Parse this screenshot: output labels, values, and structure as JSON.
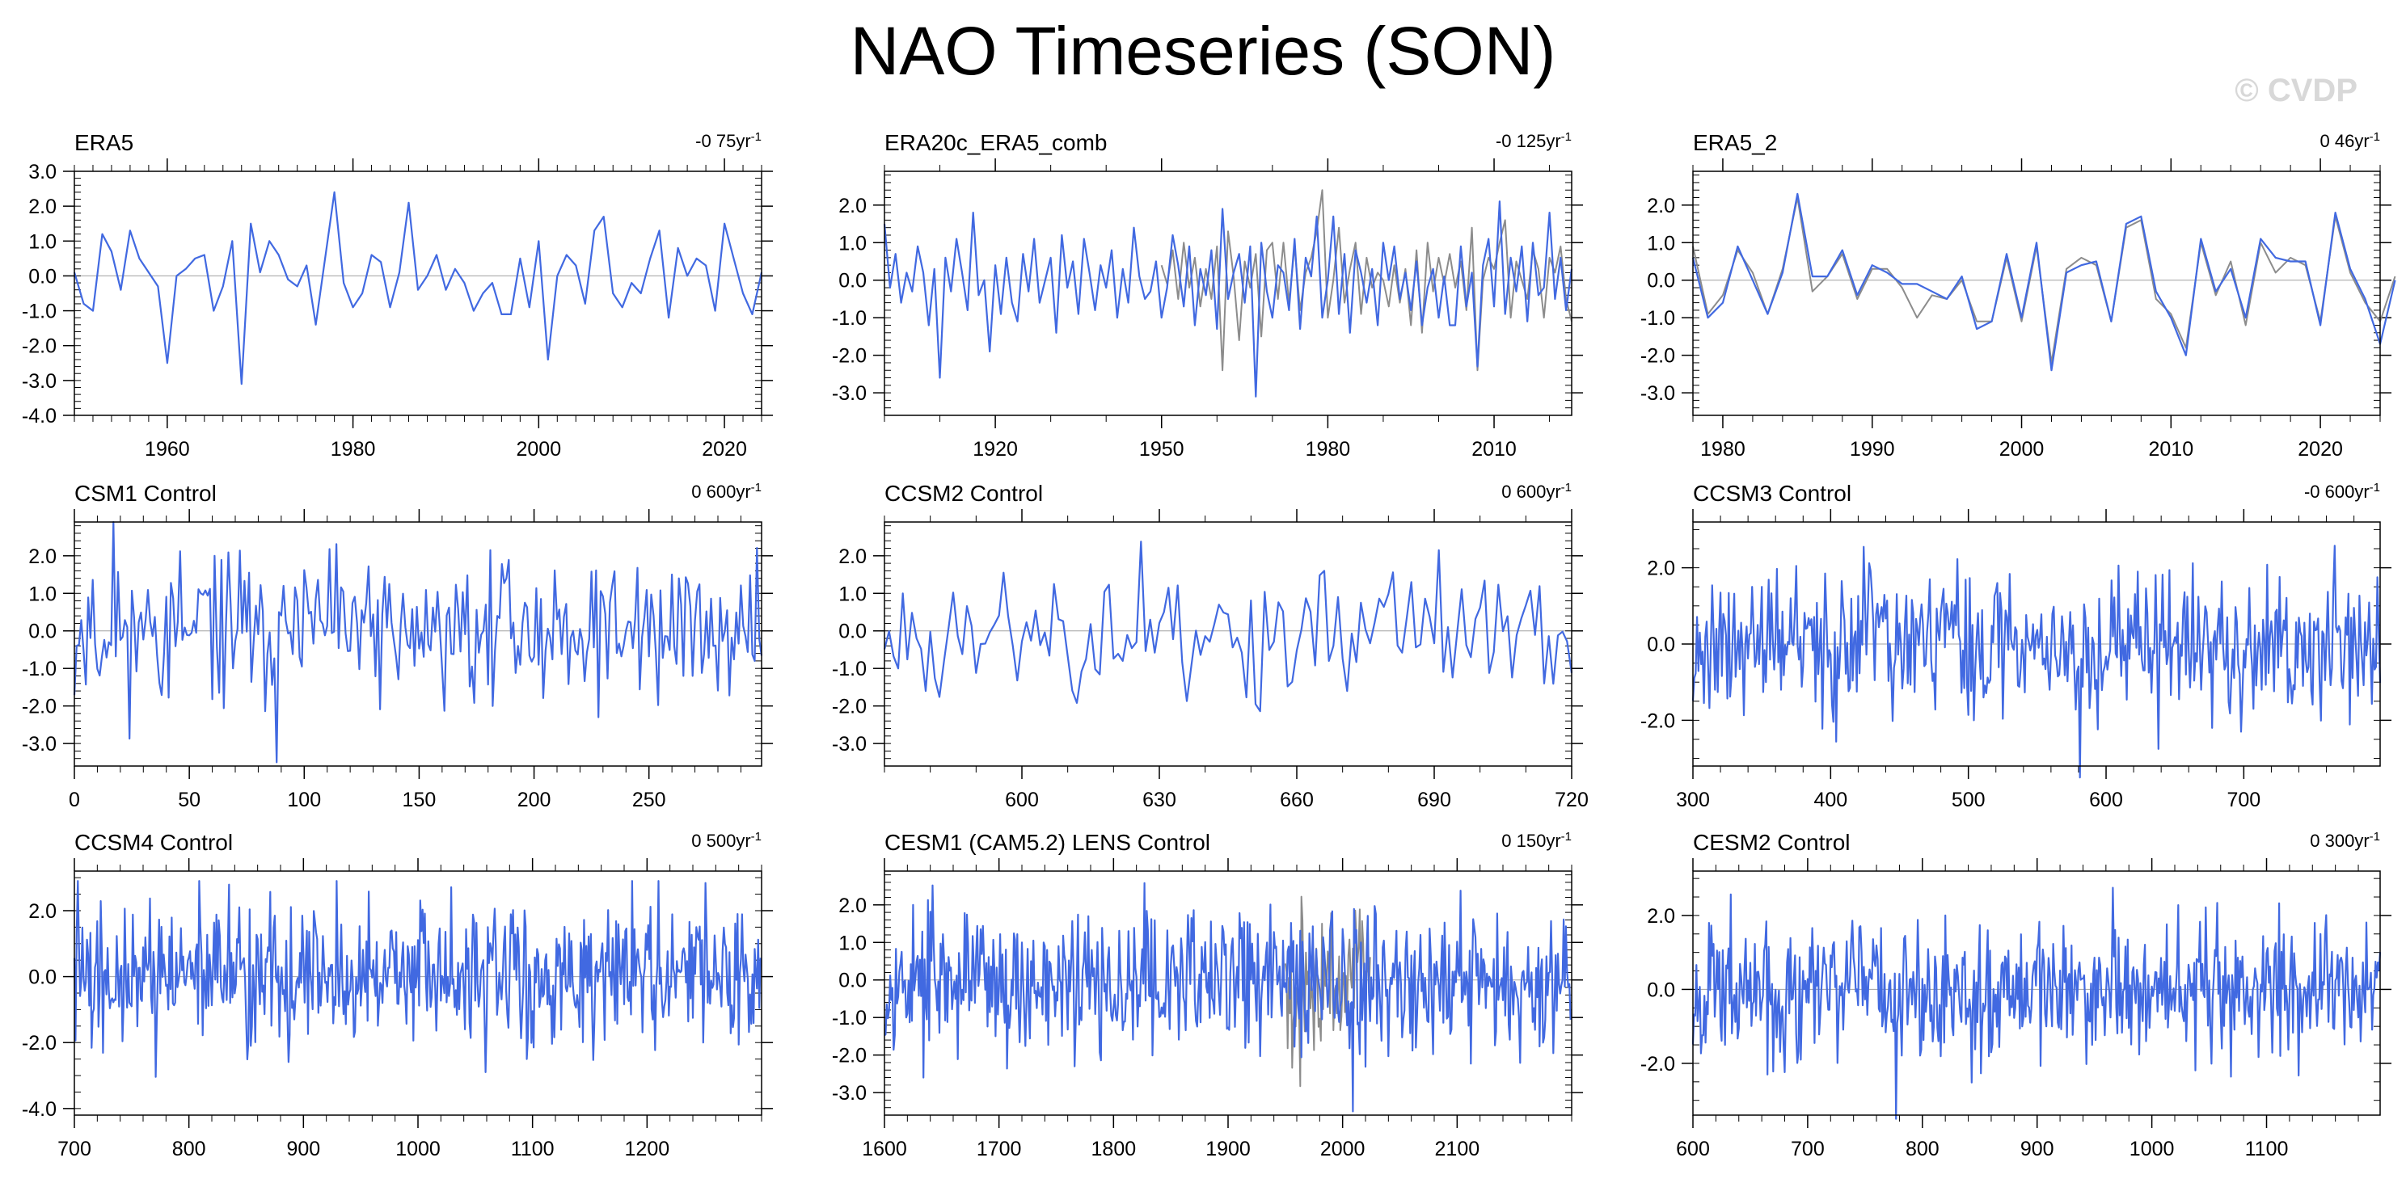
{
  "title": "NAO Timeseries (SON)",
  "watermark": "© CVDP",
  "colors": {
    "model": "#4169e1",
    "reference": "#8c8c8c",
    "zero_line": "#a0a0a0"
  },
  "chart_data": [
    {
      "type": "line",
      "title": "ERA5",
      "trend": "-0 75yr",
      "trend_unit": "-1",
      "xlim": [
        1950,
        2024
      ],
      "ylim": [
        -4,
        3
      ],
      "xticks": [
        1960,
        1980,
        2000,
        2020
      ],
      "yticks": [
        -4,
        -3,
        -2,
        -1,
        0,
        1,
        2,
        3
      ],
      "ytick_labels": [
        "-4.0",
        "-3.0",
        "-2.0",
        "-1.0",
        "0.0",
        "1.0",
        "2.0",
        "3.0"
      ],
      "series": [
        {
          "x_start": 1950,
          "values": [
            0.1,
            -0.8,
            -1.0,
            1.2,
            0.7,
            -0.4,
            1.3,
            0.5,
            0.1,
            -0.3,
            -2.5,
            0.0,
            0.2,
            0.5,
            0.6,
            -1.0,
            -0.3,
            1.0,
            -3.1,
            1.5,
            0.1,
            1.0,
            0.6,
            -0.1,
            -0.3,
            0.3,
            -1.4,
            0.5,
            2.4,
            -0.2,
            -0.9,
            -0.5,
            0.6,
            0.4,
            -0.9,
            0.1,
            2.1,
            -0.4,
            0.0,
            0.6,
            -0.4,
            0.2,
            -0.2,
            -1.0,
            -0.5,
            -0.2,
            -1.1,
            -1.1,
            0.5,
            -0.9,
            1.0,
            -2.4,
            0.0,
            0.6,
            0.3,
            -0.8,
            1.3,
            1.7,
            -0.5,
            -0.9,
            -0.2,
            -0.5,
            0.5,
            1.3,
            -1.2,
            0.8,
            0.0,
            0.5,
            0.3,
            -1.0,
            1.5,
            0.5,
            -0.5,
            -1.1,
            0.1
          ]
        }
      ]
    },
    {
      "type": "line",
      "title": "ERA20c_ERA5_comb",
      "trend": "-0 125yr",
      "trend_unit": "-1",
      "xlim": [
        1900,
        2024
      ],
      "ylim": [
        -3.6,
        2.9
      ],
      "xticks": [
        1920,
        1950,
        1980,
        2010
      ],
      "yticks": [
        -3,
        -2,
        -1,
        0,
        1,
        2
      ],
      "ytick_labels": [
        "-3.0",
        "-2.0",
        "-1.0",
        "0.0",
        "1.0",
        "2.0"
      ],
      "series": [
        {
          "x_start": 1900,
          "values": [
            1.5,
            -0.2,
            0.7,
            -0.6,
            0.2,
            -0.3,
            0.9,
            0.2,
            -1.2,
            0.3,
            -2.6,
            0.6,
            -0.3,
            1.1,
            0.2,
            -0.8,
            1.8,
            -0.4,
            0.0,
            -1.9,
            0.4,
            -0.9,
            0.6,
            -0.6,
            -1.1,
            0.7,
            -0.3,
            1.1,
            -0.6,
            0.0,
            0.6,
            -1.4,
            1.2,
            -0.2,
            0.5,
            -0.9,
            1.1,
            0.2,
            -0.8,
            0.4,
            -0.2,
            0.8,
            -1.0,
            0.3,
            -0.6,
            1.4,
            0.1,
            -0.5,
            -0.3,
            0.5,
            -1.0,
            -0.2,
            1.2,
            0.4,
            -0.7,
            0.9,
            -1.2,
            0.3,
            -0.4,
            0.8,
            -1.3,
            1.9,
            -0.5,
            0.2,
            0.7,
            -0.6,
            0.9,
            -3.1,
            1.0,
            -0.3,
            -1.0,
            0.4,
            0.2,
            -0.8,
            1.1,
            -1.3,
            0.6,
            0.1,
            1.7,
            -1.0,
            0.0,
            1.7,
            -0.9,
            0.7,
            -1.4,
            0.8,
            0.2,
            -0.6,
            0.3,
            -1.2,
            1.0,
            0.0,
            0.9,
            -0.5,
            0.2,
            -0.8,
            0.5,
            -1.2,
            -0.2,
            0.3,
            -1.0,
            0.1,
            -1.2,
            -1.2,
            0.9,
            -0.7,
            0.2,
            -2.3,
            0.4,
            1.1,
            -0.7,
            2.1,
            -0.9,
            0.6,
            -0.3,
            0.9,
            -1.1,
            1.0,
            -0.4,
            -0.2,
            1.8,
            -0.5,
            0.6,
            -0.8,
            0.3
          ]
        },
        {
          "name": "reference",
          "x_start": 1950,
          "values": [
            0.4,
            -0.1,
            0.8,
            -0.5,
            1.0,
            -0.2,
            0.6,
            -0.7,
            0.3,
            -0.5,
            0.9,
            -2.4,
            1.3,
            0.1,
            -1.6,
            0.5,
            -0.2,
            0.7,
            -1.5,
            0.8,
            1.0,
            -0.5,
            1.0,
            -0.6,
            0.9,
            -0.8,
            0.2,
            0.6,
            1.3,
            2.4,
            -1.0,
            0.0,
            1.4,
            -0.6,
            0.3,
            1.0,
            -0.9,
            0.6,
            -0.2,
            0.2,
            0.0,
            -0.7,
            0.4,
            -0.6,
            0.3,
            -1.2,
            0.8,
            -1.4,
            1.0,
            -0.3,
            0.6,
            -0.1,
            0.7,
            -0.2,
            0.5,
            -0.8,
            1.4,
            -2.4,
            0.0,
            0.6,
            0.3,
            1.0,
            1.6,
            -1.0,
            0.5,
            0.0,
            -0.5,
            0.8,
            0.3,
            -1.0,
            0.6,
            0.2,
            0.9,
            -0.5,
            -1.1
          ]
        }
      ]
    },
    {
      "type": "line",
      "title": "ERA5_2",
      "trend": "0 46yr",
      "trend_unit": "-1",
      "xlim": [
        1978,
        2024
      ],
      "ylim": [
        -3.6,
        2.9
      ],
      "xticks": [
        1980,
        1990,
        2000,
        2010,
        2020
      ],
      "yticks": [
        -3,
        -2,
        -1,
        0,
        1,
        2
      ],
      "ytick_labels": [
        "-3.0",
        "-2.0",
        "-1.0",
        "0.0",
        "1.0",
        "2.0"
      ],
      "series": [
        {
          "x_start": 1978,
          "values": [
            0.6,
            -1.0,
            -0.6,
            0.9,
            0.0,
            -0.9,
            0.2,
            2.3,
            0.1,
            0.1,
            0.8,
            -0.4,
            0.4,
            0.2,
            -0.1,
            -0.1,
            -0.3,
            -0.5,
            0.1,
            -1.3,
            -1.1,
            0.7,
            -1.0,
            1.0,
            -2.4,
            0.2,
            0.4,
            0.5,
            -1.1,
            1.5,
            1.7,
            -0.3,
            -1.0,
            -2.0,
            1.1,
            -0.3,
            0.3,
            -1.0,
            1.1,
            0.6,
            0.5,
            0.5,
            -1.2,
            1.8,
            0.3,
            -0.5,
            -1.7,
            0.0
          ]
        },
        {
          "name": "reference",
          "x_start": 1978,
          "values": [
            0.9,
            -0.9,
            -0.4,
            0.8,
            0.2,
            -0.9,
            0.3,
            2.2,
            -0.3,
            0.1,
            0.7,
            -0.5,
            0.3,
            0.3,
            -0.2,
            -1.0,
            -0.4,
            -0.5,
            0.0,
            -1.1,
            -1.1,
            0.6,
            -1.1,
            0.9,
            -2.2,
            0.3,
            0.6,
            0.4,
            -1.1,
            1.4,
            1.6,
            -0.5,
            -0.9,
            -1.8,
            1.0,
            -0.4,
            0.5,
            -1.2,
            1.0,
            0.2,
            0.6,
            0.4,
            -1.1,
            1.7,
            0.2,
            -0.6,
            -1.1,
            0.1
          ]
        }
      ]
    },
    {
      "type": "line",
      "title": "CSM1 Control",
      "trend": "0 600yr",
      "trend_unit": "-1",
      "xlim": [
        0,
        299
      ],
      "ylim": [
        -3.6,
        2.9
      ],
      "xticks": [
        0,
        50,
        100,
        150,
        200,
        250
      ],
      "yticks": [
        -3,
        -2,
        -1,
        0,
        1,
        2
      ],
      "ytick_labels": [
        "-3.0",
        "-2.0",
        "-1.0",
        "0.0",
        "1.0",
        "2.0"
      ],
      "synthetic": {
        "seed": 11,
        "n": 300,
        "amp": 0.95
      },
      "series": []
    },
    {
      "type": "line",
      "title": "CCSM2 Control",
      "trend": "0 600yr",
      "trend_unit": "-1",
      "xlim": [
        570,
        720
      ],
      "ylim": [
        -3.6,
        2.9
      ],
      "xticks": [
        600,
        630,
        660,
        690,
        720
      ],
      "yticks": [
        -3,
        -2,
        -1,
        0,
        1,
        2
      ],
      "ytick_labels": [
        "-3.0",
        "-2.0",
        "-1.0",
        "0.0",
        "1.0",
        "2.0"
      ],
      "synthetic": {
        "seed": 23,
        "n": 151,
        "amp": 0.95
      },
      "series": []
    },
    {
      "type": "line",
      "title": "CCSM3 Control",
      "trend": "-0 600yr",
      "trend_unit": "-1",
      "xlim": [
        300,
        799
      ],
      "ylim": [
        -3.2,
        3.2
      ],
      "xticks": [
        300,
        400,
        500,
        600,
        700
      ],
      "yticks": [
        -2,
        0,
        2
      ],
      "ytick_labels": [
        "-2.0",
        "0.0",
        "2.0"
      ],
      "synthetic": {
        "seed": 37,
        "n": 500,
        "amp": 0.95
      },
      "series": []
    },
    {
      "type": "line",
      "title": "CCSM4 Control",
      "trend": "0 500yr",
      "trend_unit": "-1",
      "xlim": [
        700,
        1300
      ],
      "ylim": [
        -4.2,
        3.2
      ],
      "xticks": [
        700,
        800,
        900,
        1000,
        1100,
        1200
      ],
      "yticks": [
        -4,
        -2,
        0,
        2
      ],
      "ytick_labels": [
        "-4.0",
        "-2.0",
        "0.0",
        "2.0"
      ],
      "synthetic": {
        "seed": 41,
        "n": 600,
        "amp": 1.0
      },
      "series": []
    },
    {
      "type": "line",
      "title": "CESM1 (CAM5.2) LENS Control",
      "trend": "0 150yr",
      "trend_unit": "-1",
      "xlim": [
        1600,
        2200
      ],
      "ylim": [
        -3.6,
        2.9
      ],
      "xticks": [
        1600,
        1700,
        1800,
        1900,
        2000,
        2100
      ],
      "yticks": [
        -3,
        -2,
        -1,
        0,
        1,
        2
      ],
      "ytick_labels": [
        "-3.0",
        "-2.0",
        "-1.0",
        "0.0",
        "1.0",
        "2.0"
      ],
      "synthetic": {
        "seed": 53,
        "n": 600,
        "amp": 0.95,
        "ref_start": 1950,
        "ref_n": 75
      },
      "series": []
    },
    {
      "type": "line",
      "title": "CESM2 Control",
      "trend": "0 300yr",
      "trend_unit": "-1",
      "xlim": [
        600,
        1199
      ],
      "ylim": [
        -3.4,
        3.2
      ],
      "xticks": [
        600,
        700,
        800,
        900,
        1000,
        1100
      ],
      "yticks": [
        -2,
        0,
        2
      ],
      "ytick_labels": [
        "-2.0",
        "0.0",
        "2.0"
      ],
      "synthetic": {
        "seed": 67,
        "n": 600,
        "amp": 0.9
      },
      "series": []
    }
  ]
}
